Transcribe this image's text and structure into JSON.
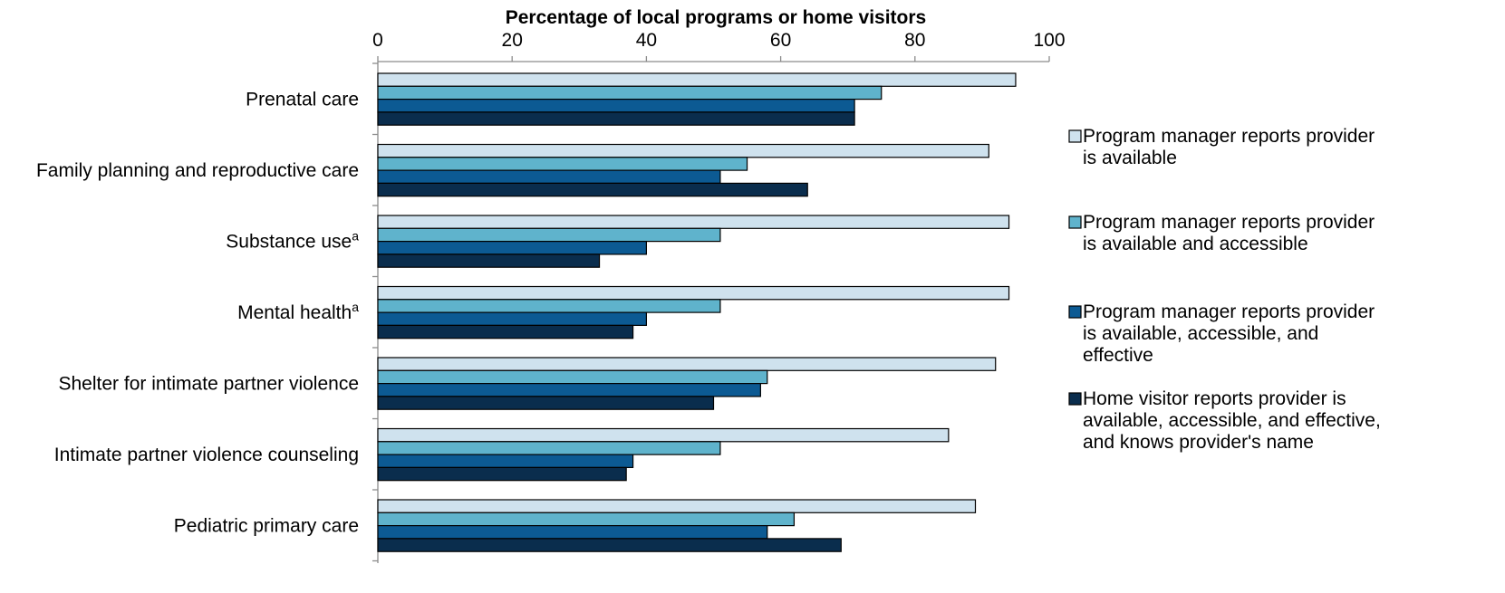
{
  "chart_data": {
    "type": "bar",
    "orientation": "horizontal",
    "title": "",
    "xlabel": "Percentage of local programs or home visitors",
    "ylabel": "",
    "xlim": [
      0,
      100
    ],
    "x_ticks": [
      "0",
      "20",
      "40",
      "60",
      "80",
      "100"
    ],
    "grid": false,
    "legend_position": "right",
    "categories": [
      {
        "label": "Prenatal care",
        "sup": ""
      },
      {
        "label": "Family planning and reproductive care",
        "sup": ""
      },
      {
        "label": "Substance use",
        "sup": "a"
      },
      {
        "label": "Mental health",
        "sup": "a"
      },
      {
        "label": "Shelter for intimate partner violence",
        "sup": ""
      },
      {
        "label": "Intimate partner violence counseling",
        "sup": ""
      },
      {
        "label": "Pediatric primary care",
        "sup": ""
      }
    ],
    "series": [
      {
        "name": "Program manager reports provider is available",
        "legend_lines": [
          "Program manager reports provider",
          "is available"
        ],
        "color": "#cfe2ee",
        "values": [
          95,
          91,
          94,
          94,
          92,
          85,
          89
        ]
      },
      {
        "name": "Program manager reports provider is available and accessible",
        "legend_lines": [
          "Program manager reports provider",
          "is available and accessible"
        ],
        "color": "#5fb3cc",
        "values": [
          75,
          55,
          51,
          51,
          58,
          51,
          62
        ]
      },
      {
        "name": "Program manager reports provider is available, accessible, and effective",
        "legend_lines": [
          "Program manager reports provider",
          "is available, accessible, and",
          "effective"
        ],
        "color": "#0c5a93",
        "values": [
          71,
          51,
          40,
          40,
          57,
          38,
          58
        ]
      },
      {
        "name": "Home visitor reports provider is available, accessible, and effective, and knows provider's name",
        "legend_lines": [
          "Home visitor reports provider is",
          "available, accessible, and effective,",
          "and knows provider's name"
        ],
        "color": "#0a2d4d",
        "values": [
          71,
          64,
          33,
          38,
          50,
          37,
          69
        ]
      }
    ]
  }
}
